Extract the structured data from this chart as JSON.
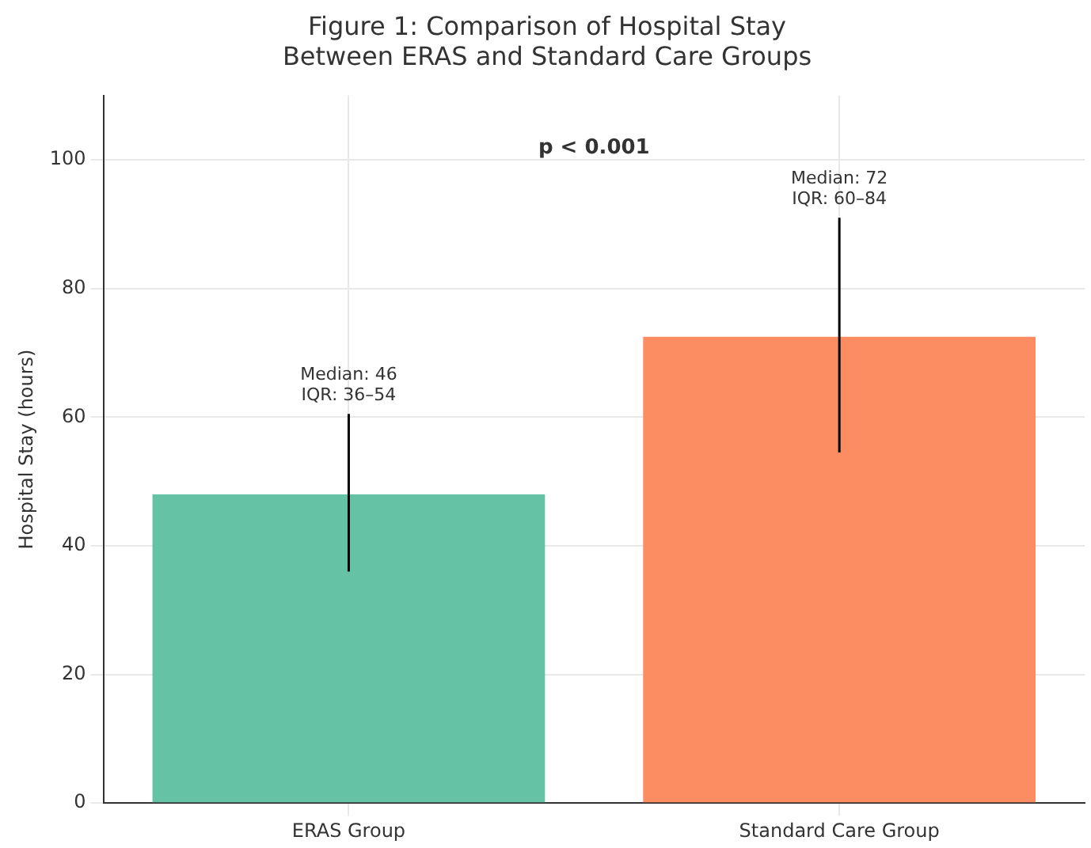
{
  "chart_data": {
    "type": "bar",
    "title": "Figure 1: Comparison of Hospital Stay\nBetween ERAS and Standard Care Groups",
    "ylabel": "Hospital Stay (hours)",
    "categories": [
      "ERAS Group",
      "Standard Care Group"
    ],
    "values": [
      48,
      72.5
    ],
    "colors": [
      "#66c2a5",
      "#fc8d62"
    ],
    "errors": [
      [
        36,
        60.5
      ],
      [
        54.5,
        91
      ]
    ],
    "ylim": [
      0,
      110
    ],
    "yticks": [
      0,
      20,
      40,
      60,
      80,
      100
    ],
    "grid": true,
    "annotations": [
      "Median: 46\nIQR: 36–54",
      "Median: 72\nIQR: 60–84",
      "p < 0.001"
    ]
  }
}
